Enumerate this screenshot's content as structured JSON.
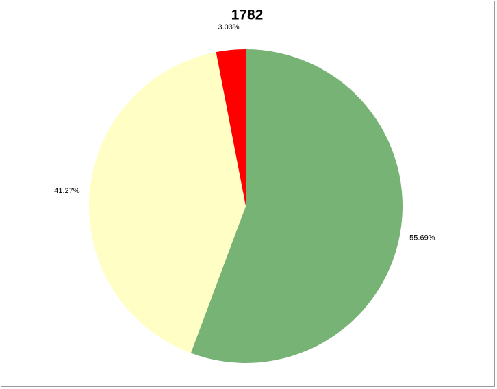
{
  "chart_data": {
    "type": "pie",
    "title": "1782",
    "values": [
      55.69,
      41.27,
      3.03
    ],
    "value_labels": [
      "55.69%",
      "41.27%",
      "3.03%"
    ],
    "colors": [
      "#77b375",
      "#ffffc5",
      "#ff0000"
    ]
  }
}
